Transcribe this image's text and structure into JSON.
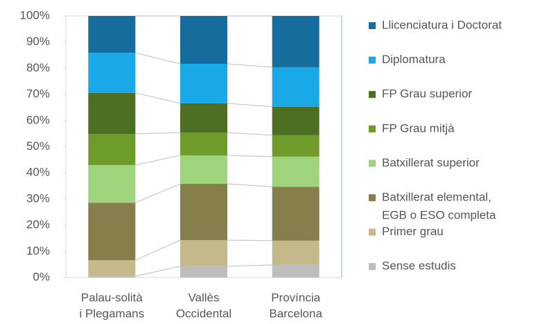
{
  "chart_data": {
    "type": "stacked_bar_100",
    "categories": [
      [
        "Palau-solità",
        "i Plegamans"
      ],
      [
        "Vallès",
        "Occidental"
      ],
      [
        "Província",
        "Barcelona"
      ]
    ],
    "series": [
      {
        "name": [
          "Sense estudis"
        ],
        "color": "#bdbdbd",
        "values": [
          0.5,
          4.3,
          4.8
        ]
      },
      {
        "name": [
          "Primer grau"
        ],
        "color": "#c4b98b",
        "values": [
          6.1,
          10.0,
          9.3
        ]
      },
      {
        "name": [
          "Batxillerat elemental,",
          "EGB o ESO completa"
        ],
        "color": "#867e4b",
        "values": [
          22.0,
          21.5,
          20.6
        ]
      },
      {
        "name": [
          "Batxillerat superior"
        ],
        "color": "#9fd47c",
        "values": [
          14.4,
          10.9,
          11.5
        ]
      },
      {
        "name": [
          "FP Grau mitjà"
        ],
        "color": "#6f9b2b",
        "values": [
          11.9,
          8.7,
          8.2
        ]
      },
      {
        "name": [
          "FP Grau superior"
        ],
        "color": "#4c6f24",
        "values": [
          15.7,
          11.2,
          10.9
        ]
      },
      {
        "name": [
          "Diplomatura"
        ],
        "color": "#1aa9e8",
        "values": [
          15.3,
          15.1,
          15.1
        ]
      },
      {
        "name": [
          "Llicenciatura i Doctorat"
        ],
        "color": "#166c9c",
        "values": [
          14.1,
          18.3,
          19.6
        ]
      }
    ],
    "ylim": [
      0,
      100
    ],
    "yticks": [
      {
        "value": 0,
        "label": "0%"
      },
      {
        "value": 10,
        "label": "10%"
      },
      {
        "value": 20,
        "label": "20%"
      },
      {
        "value": 30,
        "label": "30%"
      },
      {
        "value": 40,
        "label": "40%"
      },
      {
        "value": 50,
        "label": "50%"
      },
      {
        "value": 60,
        "label": "60%"
      },
      {
        "value": 70,
        "label": "70%"
      },
      {
        "value": 80,
        "label": "80%"
      },
      {
        "value": 90,
        "label": "90%"
      },
      {
        "value": 100,
        "label": "100%"
      }
    ],
    "legend": "right"
  }
}
